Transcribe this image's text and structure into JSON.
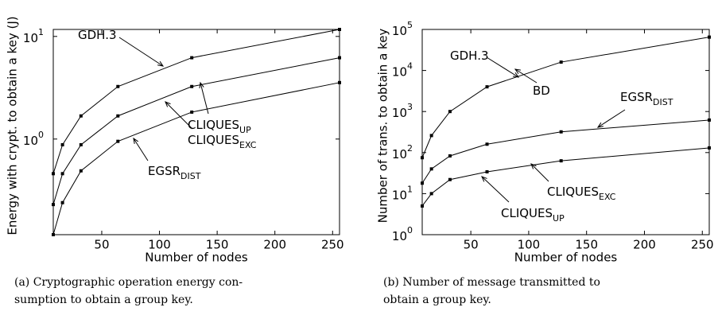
{
  "chart_data": [
    {
      "type": "line",
      "log_y": true,
      "ylabel": "Energy with crypt. to obtain a key (J)",
      "xlabel": "Number of nodes",
      "x": [
        8,
        16,
        32,
        64,
        128,
        256
      ],
      "xlim": [
        8,
        256
      ],
      "xticks": [
        50,
        100,
        150,
        200,
        250
      ],
      "ylim": [
        0.117,
        11.7
      ],
      "yticks": [
        {
          "value": 1,
          "label": "10",
          "exponent": "0"
        },
        {
          "value": 10,
          "label": "10",
          "exponent": "1"
        }
      ],
      "color": "#000000",
      "series": [
        {
          "values": [
            0.46,
            0.88,
            1.68,
            3.25,
            6.2,
            11.7
          ]
        },
        {
          "values": [
            0.23,
            0.46,
            0.88,
            1.68,
            3.25,
            6.2
          ]
        },
        {
          "values": [
            0.117,
            0.24,
            0.49,
            0.95,
            1.83,
            3.55
          ]
        }
      ],
      "annotations": [
        {
          "text": "GDH.3"
        },
        {
          "text": "CLIQUES",
          "sub": "UP"
        },
        {
          "text": "CLIQUES",
          "sub": "EXC"
        },
        {
          "text": "EGSR",
          "sub": "DIST"
        }
      ],
      "caption": [
        "(a) Cryptographic operation energy con-",
        "sumption to obtain a group key."
      ]
    },
    {
      "type": "line",
      "log_y": true,
      "ylabel": "Number of trans. to obtain a key",
      "xlabel": "Number of nodes",
      "x": [
        8,
        16,
        32,
        64,
        128,
        256
      ],
      "xlim": [
        8,
        256
      ],
      "xticks": [
        50,
        100,
        150,
        200,
        250
      ],
      "ylim": [
        1,
        100000
      ],
      "yticks": [
        {
          "value": 1,
          "label": "10",
          "exponent": "0"
        },
        {
          "value": 10,
          "label": "10",
          "exponent": "1"
        },
        {
          "value": 100,
          "label": "10",
          "exponent": "2"
        },
        {
          "value": 1000,
          "label": "10",
          "exponent": "3"
        },
        {
          "value": 10000,
          "label": "10",
          "exponent": "4"
        },
        {
          "value": 100000,
          "label": "10",
          "exponent": "5"
        }
      ],
      "color": "#000000",
      "series": [
        {
          "values": [
            75,
            260,
            1000,
            4000,
            16000,
            65000
          ]
        },
        {
          "values": [
            18,
            40,
            83,
            160,
            320,
            620
          ]
        },
        {
          "values": [
            5,
            10,
            22,
            34,
            63,
            130
          ]
        }
      ],
      "annotations": [
        {
          "text": "GDH.3"
        },
        {
          "text": "BD"
        },
        {
          "text": "EGSR",
          "sub": "DIST"
        },
        {
          "text": "CLIQUES",
          "sub": "EXC"
        },
        {
          "text": "CLIQUES",
          "sub": "UP"
        }
      ],
      "caption": [
        "(b) Number of message transmitted to",
        "obtain a group key."
      ]
    }
  ]
}
